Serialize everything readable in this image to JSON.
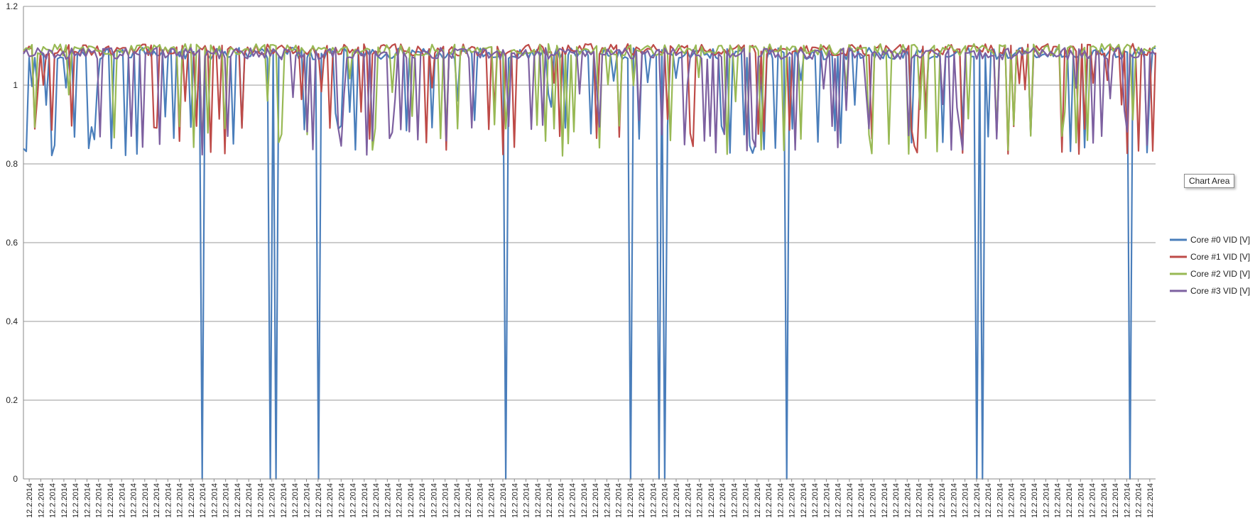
{
  "chart_data": {
    "type": "line",
    "title": "",
    "xlabel": "",
    "ylabel": "",
    "ylim": [
      0,
      1.2
    ],
    "yticks": [
      "0",
      "0.2",
      "0.4",
      "0.6",
      "0.8",
      "1",
      "1.2"
    ],
    "ytick_values": [
      0,
      0.2,
      0.4,
      0.6,
      0.8,
      1.0,
      1.2
    ],
    "grid": true,
    "legend_position": "right",
    "x_tick_label": "12.2.2014",
    "x_tick_count": 98,
    "n_points": 400,
    "series": [
      {
        "name": "Core #0 VID [V]",
        "color": "#4a7ebb",
        "baseline": 1.08,
        "dips_to_zero": [
          63,
          87,
          89,
          104,
          170,
          214,
          224,
          226,
          269,
          336,
          338,
          390
        ]
      },
      {
        "name": "Core #1 VID [V]",
        "color": "#be4b48",
        "baseline": 1.09,
        "dips_to_zero": []
      },
      {
        "name": "Core #2 VID [V]",
        "color": "#98b954",
        "baseline": 1.09,
        "dips_to_zero": []
      },
      {
        "name": "Core #3 VID [V]",
        "color": "#7d60a0",
        "baseline": 1.08,
        "dips_to_zero": []
      }
    ]
  },
  "tooltip": "Chart Area"
}
